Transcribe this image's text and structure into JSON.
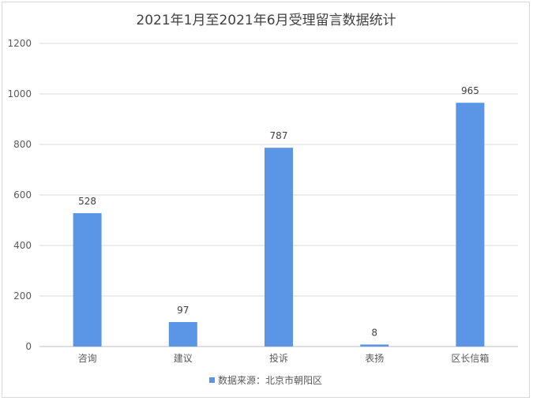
{
  "chart_data": {
    "type": "bar",
    "title": "2021年1月至2021年6月受理留言数据统计",
    "categories": [
      "咨询",
      "建议",
      "投诉",
      "表扬",
      "区长信箱"
    ],
    "series": [
      {
        "name": "数据来源：北京市朝阳区",
        "values": [
          528,
          97,
          787,
          8,
          965
        ]
      }
    ],
    "yticks": [
      "0",
      "200",
      "400",
      "600",
      "800",
      "1000",
      "1200"
    ],
    "ylim": [
      0,
      1200
    ],
    "grid": true,
    "legend": "bottom",
    "colors": {
      "bar": "#5b95e5",
      "grid": "#d9d9d9",
      "axis": "#bfbfbf"
    }
  }
}
